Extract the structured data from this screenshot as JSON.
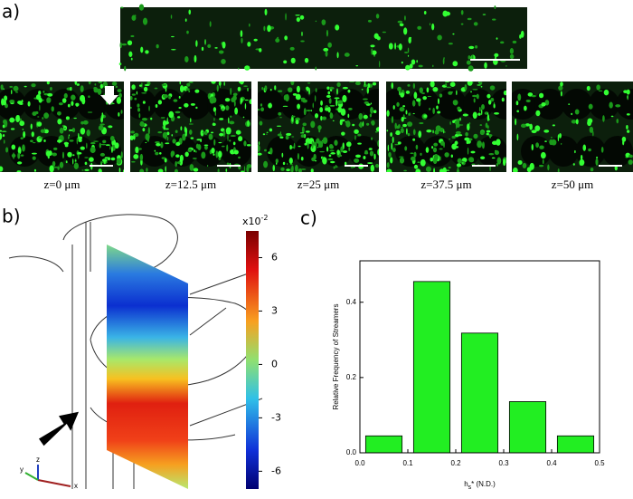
{
  "panels": {
    "a": "a)",
    "b": "b)",
    "c": "c)"
  },
  "slices": [
    "z=0 μm",
    "z=12.5 μm",
    "z=25 μm",
    "z=37.5 μm",
    "z=50 μm"
  ],
  "colorbar": {
    "multiplier_base": "x10",
    "multiplier_exp": "-2",
    "clim": [
      -7,
      7.5
    ],
    "ticks": [
      6,
      3,
      0,
      -3,
      -6
    ]
  },
  "axes_triad": {
    "x": "x",
    "y": "y",
    "z": "z"
  },
  "chart_data": {
    "type": "histogram",
    "ylabel": "Relative Frequency of Streamers",
    "xlabel": {
      "base": "h",
      "sub": "s",
      "rest": "* (N.D.)"
    },
    "bins": [
      0,
      0.1,
      0.2,
      0.3,
      0.4,
      0.5
    ],
    "values": [
      0.045,
      0.455,
      0.318,
      0.136,
      0.045
    ],
    "color": "#22ee22",
    "xlim": [
      0,
      0.5
    ],
    "ylim": [
      0,
      0.51
    ],
    "xticks": [
      {
        "value": 0,
        "label": "0.0"
      },
      0.1,
      0.2,
      0.3,
      0.4,
      0.5
    ],
    "yticks": [
      {
        "value": 0,
        "label": "0.0"
      },
      0.2,
      0.4
    ]
  }
}
